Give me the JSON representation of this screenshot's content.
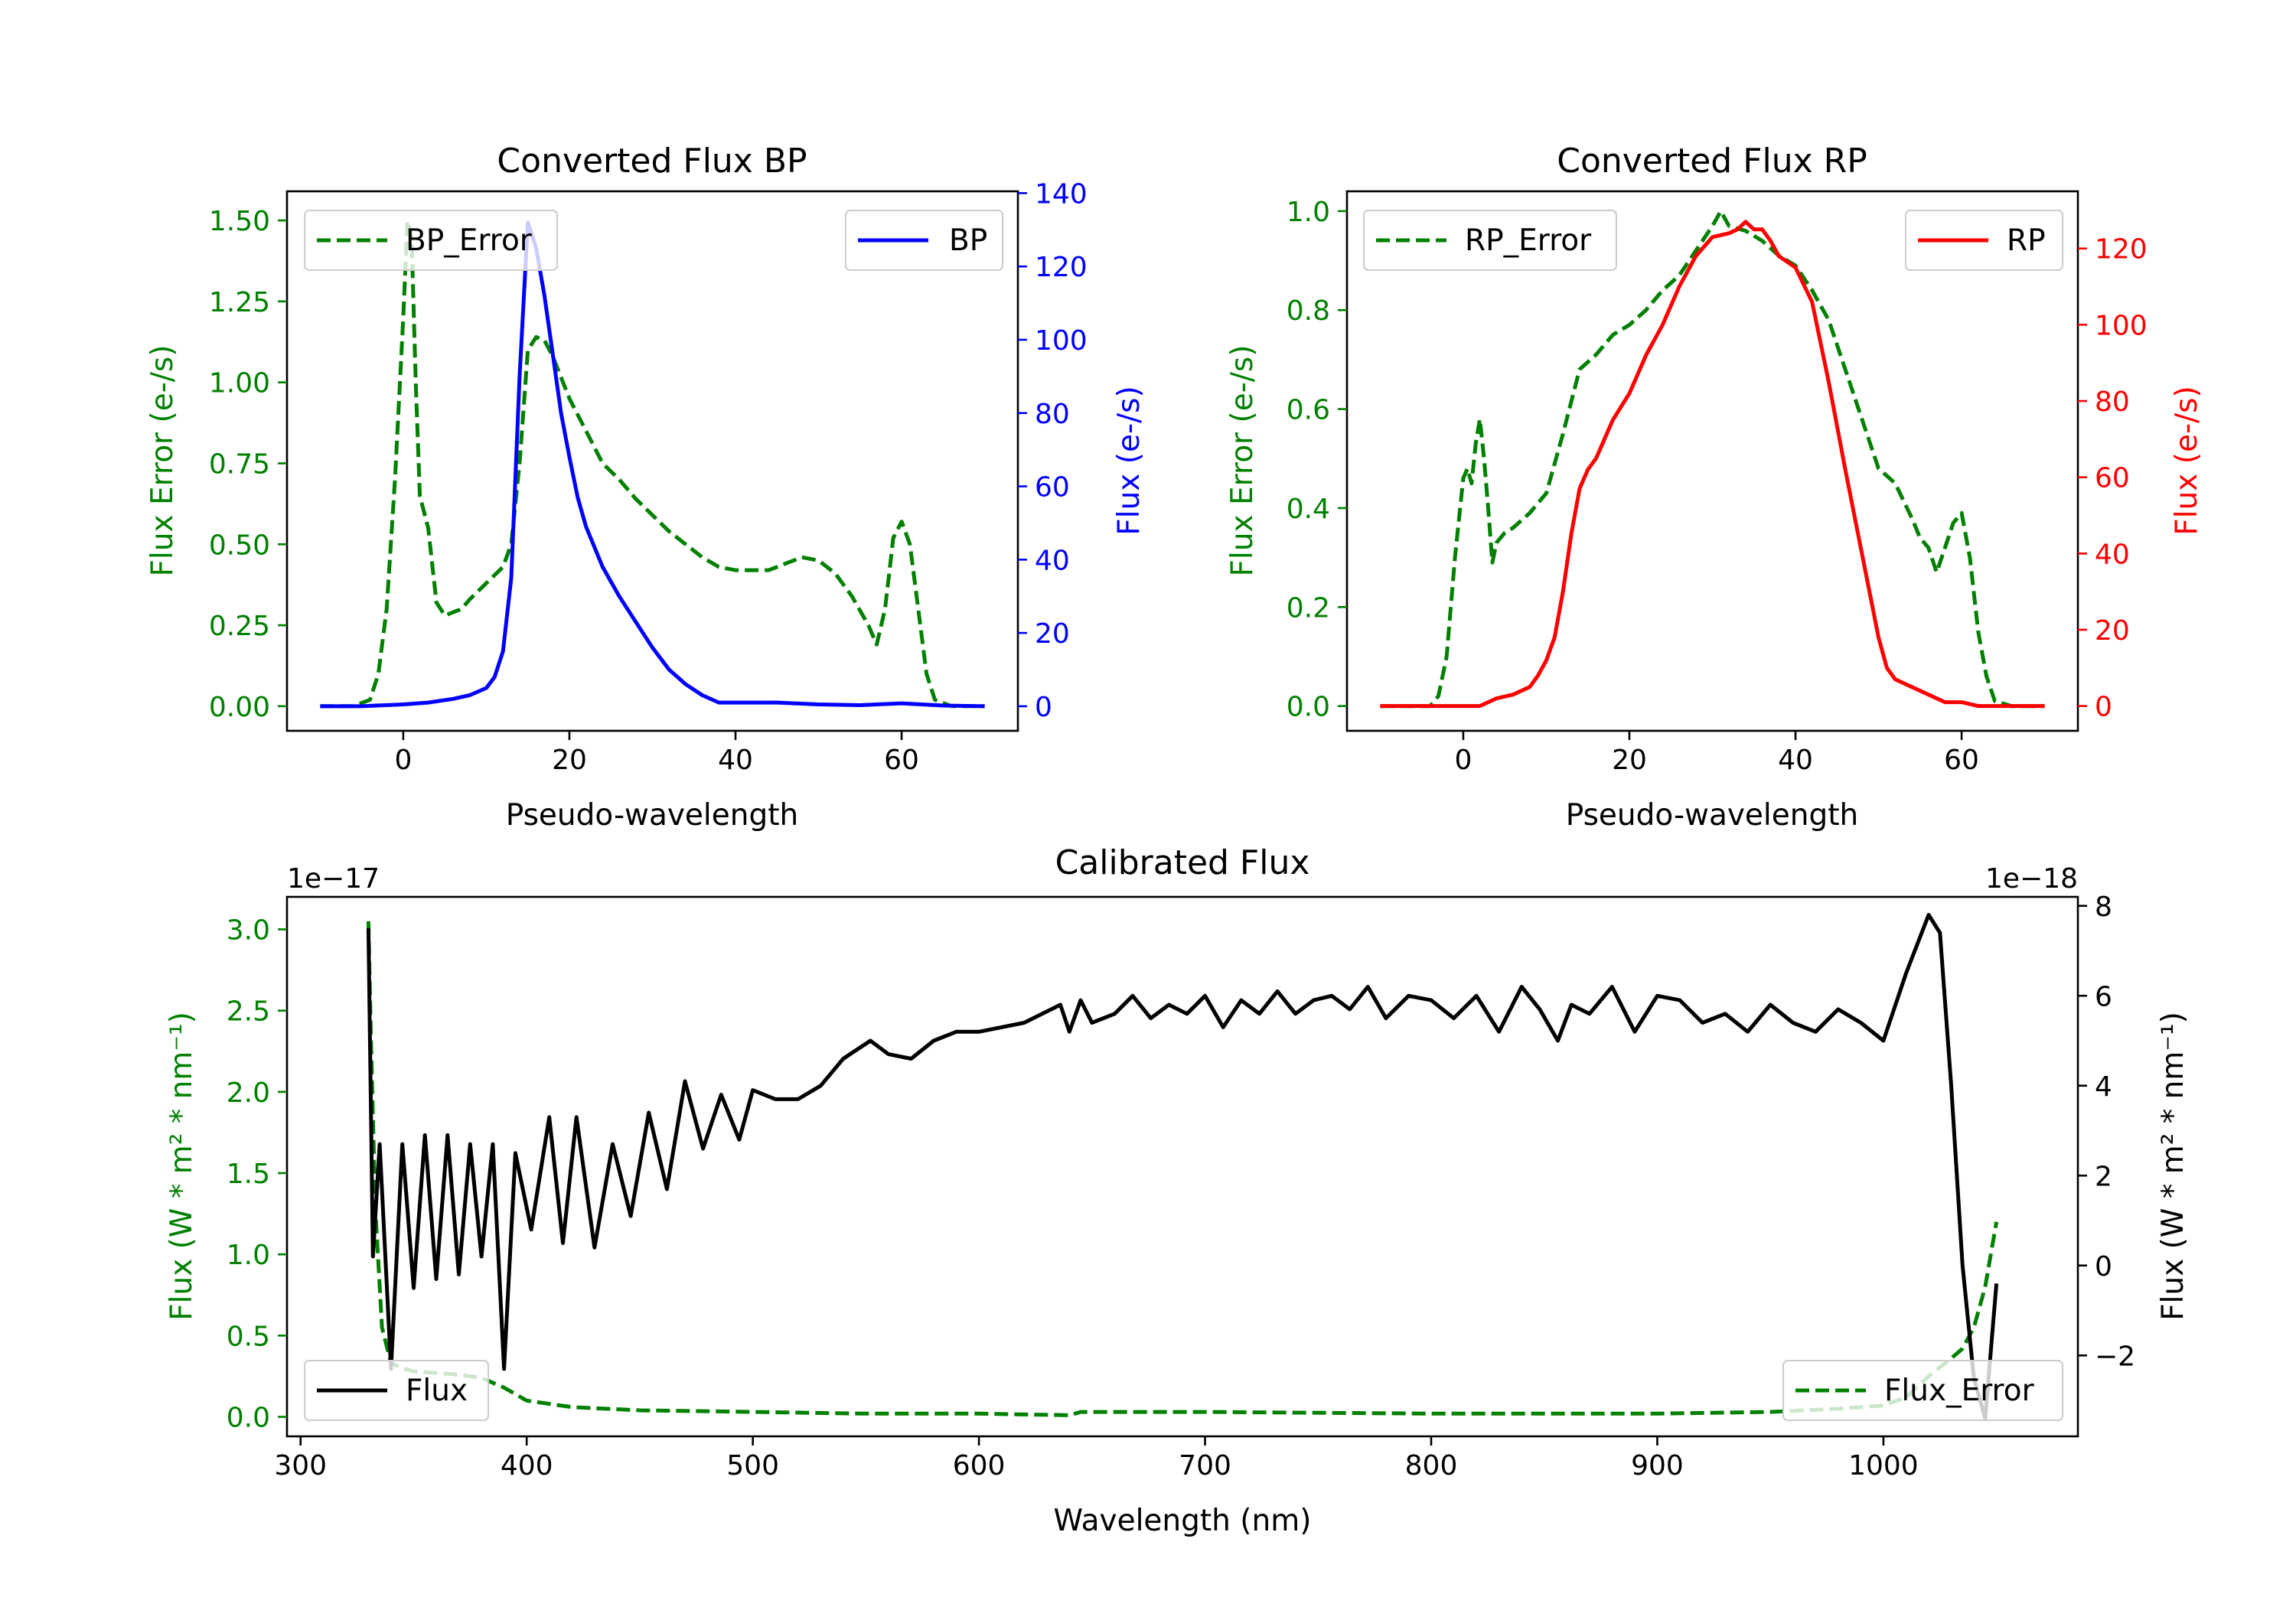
{
  "chart_data": [
    {
      "id": "bp",
      "type": "line",
      "title": "Converted Flux BP",
      "xlabel": "Pseudo-wavelength",
      "xlim": [
        -14,
        74
      ],
      "xticks": [
        0,
        20,
        40,
        60
      ],
      "left_axis": {
        "label": "Flux Error (e-/s)",
        "color": "#008000",
        "lim": [
          -0.076,
          1.59
        ],
        "ticks": [
          0.0,
          0.25,
          0.5,
          0.75,
          1.0,
          1.25,
          1.5
        ],
        "tick_labels": [
          "0.00",
          "0.25",
          "0.50",
          "0.75",
          "1.00",
          "1.25",
          "1.50"
        ]
      },
      "right_axis": {
        "label": "Flux (e-/s)",
        "color": "#0000ff",
        "lim": [
          -6.7,
          140.5
        ],
        "ticks": [
          0,
          20,
          40,
          60,
          80,
          100,
          120,
          140
        ],
        "tick_labels": [
          "0",
          "20",
          "40",
          "60",
          "80",
          "100",
          "120",
          "140"
        ]
      },
      "series": [
        {
          "name": "BP_Error",
          "axis": "left",
          "color": "#008000",
          "dash": true,
          "x": [
            -10,
            -6,
            -4,
            -3,
            -2,
            -1,
            0,
            0.5,
            1,
            1.5,
            2,
            3,
            4,
            5,
            6,
            7,
            8,
            10,
            12,
            13,
            14,
            15,
            16,
            17,
            18,
            20,
            22,
            24,
            26,
            28,
            30,
            32,
            34,
            36,
            38,
            40,
            42,
            44,
            46,
            48,
            50,
            52,
            54,
            56,
            57,
            58,
            59,
            60,
            61,
            62,
            63,
            64,
            66,
            68,
            70
          ],
          "values": [
            0.0,
            0.0,
            0.02,
            0.1,
            0.3,
            0.7,
            1.2,
            1.5,
            1.45,
            1.0,
            0.65,
            0.55,
            0.32,
            0.28,
            0.29,
            0.3,
            0.33,
            0.38,
            0.43,
            0.5,
            0.75,
            1.1,
            1.14,
            1.13,
            1.08,
            0.95,
            0.85,
            0.75,
            0.7,
            0.64,
            0.59,
            0.54,
            0.5,
            0.46,
            0.43,
            0.42,
            0.42,
            0.42,
            0.44,
            0.46,
            0.45,
            0.41,
            0.34,
            0.25,
            0.19,
            0.3,
            0.52,
            0.57,
            0.5,
            0.3,
            0.1,
            0.02,
            0.0,
            0.0,
            0.0
          ]
        },
        {
          "name": "BP",
          "axis": "right",
          "color": "#0000ff",
          "dash": false,
          "x": [
            -10,
            -5,
            0,
            3,
            6,
            8,
            10,
            11,
            12,
            13,
            14,
            15,
            16,
            17,
            18,
            19,
            20,
            21,
            22,
            24,
            26,
            28,
            30,
            32,
            34,
            36,
            38,
            40,
            45,
            50,
            55,
            60,
            65,
            70
          ],
          "values": [
            0,
            0,
            0.5,
            1,
            2,
            3,
            5,
            8,
            15,
            35,
            90,
            132,
            125,
            112,
            96,
            80,
            68,
            57,
            49,
            38,
            30,
            23,
            16,
            10,
            6,
            3,
            1,
            1,
            1,
            0.5,
            0.3,
            0.8,
            0.2,
            0
          ]
        }
      ],
      "legends": [
        {
          "labels": [
            "BP_Error"
          ],
          "placement": "top-left"
        },
        {
          "labels": [
            "BP"
          ],
          "placement": "top-right"
        }
      ]
    },
    {
      "id": "rp",
      "type": "line",
      "title": "Converted Flux RP",
      "xlabel": "Pseudo-wavelength",
      "xlim": [
        -14,
        74
      ],
      "xticks": [
        0,
        20,
        40,
        60
      ],
      "left_axis": {
        "label": "Flux Error (e-/s)",
        "color": "#008000",
        "lim": [
          -0.05,
          1.04
        ],
        "ticks": [
          0.0,
          0.2,
          0.4,
          0.6,
          0.8,
          1.0
        ],
        "tick_labels": [
          "0.0",
          "0.2",
          "0.4",
          "0.6",
          "0.8",
          "1.0"
        ]
      },
      "right_axis": {
        "label": "Flux (e-/s)",
        "color": "#ff0000",
        "lim": [
          -6.5,
          135
        ],
        "ticks": [
          0,
          20,
          40,
          60,
          80,
          100,
          120
        ],
        "tick_labels": [
          "0",
          "20",
          "40",
          "60",
          "80",
          "100",
          "120"
        ]
      },
      "series": [
        {
          "name": "RP_Error",
          "axis": "left",
          "color": "#008000",
          "dash": true,
          "x": [
            -10,
            -4,
            -3,
            -2,
            -1,
            0,
            0.5,
            1,
            1.5,
            2,
            2.5,
            3,
            3.5,
            4,
            5,
            6,
            8,
            10,
            12,
            14,
            16,
            18,
            20,
            22,
            24,
            26,
            28,
            30,
            31,
            32,
            34,
            36,
            38,
            40,
            42,
            44,
            46,
            48,
            50,
            52,
            54,
            55,
            56,
            57,
            58,
            59,
            60,
            61,
            62,
            63,
            64,
            66,
            70
          ],
          "values": [
            0.0,
            0.0,
            0.02,
            0.1,
            0.3,
            0.46,
            0.48,
            0.45,
            0.53,
            0.58,
            0.5,
            0.4,
            0.29,
            0.33,
            0.35,
            0.36,
            0.39,
            0.43,
            0.55,
            0.68,
            0.71,
            0.75,
            0.77,
            0.8,
            0.84,
            0.87,
            0.92,
            0.97,
            1.0,
            0.97,
            0.96,
            0.94,
            0.91,
            0.89,
            0.84,
            0.78,
            0.68,
            0.58,
            0.48,
            0.45,
            0.38,
            0.34,
            0.32,
            0.27,
            0.32,
            0.37,
            0.39,
            0.3,
            0.15,
            0.06,
            0.01,
            0.0,
            0.0
          ]
        },
        {
          "name": "RP",
          "axis": "right",
          "color": "#ff0000",
          "dash": false,
          "x": [
            -10,
            -5,
            0,
            2,
            4,
            6,
            8,
            9,
            10,
            11,
            12,
            13,
            14,
            15,
            16,
            18,
            20,
            22,
            24,
            26,
            28,
            30,
            32,
            33,
            34,
            35,
            36,
            37,
            38,
            40,
            42,
            44,
            46,
            48,
            50,
            51,
            52,
            54,
            56,
            58,
            60,
            62,
            64,
            66,
            70
          ],
          "values": [
            0,
            0,
            0,
            0,
            2,
            3,
            5,
            8,
            12,
            18,
            30,
            45,
            57,
            62,
            65,
            75,
            82,
            92,
            100,
            110,
            118,
            123,
            124,
            125,
            127,
            125,
            125,
            122,
            118,
            115,
            106,
            85,
            62,
            40,
            18,
            10,
            7,
            5,
            3,
            1,
            1,
            0,
            0,
            0,
            0
          ]
        }
      ],
      "legends": [
        {
          "labels": [
            "RP_Error"
          ],
          "placement": "top-left"
        },
        {
          "labels": [
            "RP"
          ],
          "placement": "top-right"
        }
      ]
    },
    {
      "id": "cal",
      "type": "line",
      "title": "Calibrated Flux",
      "xlabel": "Wavelength (nm)",
      "xlim": [
        294,
        1086
      ],
      "xticks": [
        300,
        400,
        500,
        600,
        700,
        800,
        900,
        1000
      ],
      "left_axis": {
        "label": "Flux (W * m² * nm⁻¹)",
        "color": "#008000",
        "offset_text": "1e−17",
        "lim": [
          -0.12,
          3.2
        ],
        "ticks": [
          0.0,
          0.5,
          1.0,
          1.5,
          2.0,
          2.5,
          3.0
        ],
        "tick_labels": [
          "0.0",
          "0.5",
          "1.0",
          "1.5",
          "2.0",
          "2.5",
          "3.0"
        ]
      },
      "right_axis": {
        "label": "Flux (W * m² * nm⁻¹)",
        "color": "#000000",
        "offset_text": "1e−18",
        "lim": [
          -3.8,
          8.2
        ],
        "ticks": [
          -2,
          0,
          2,
          4,
          6,
          8
        ],
        "tick_labels": [
          "−2",
          "0",
          "2",
          "4",
          "6",
          "8"
        ]
      },
      "series": [
        {
          "name": "Flux_Error",
          "axis": "left",
          "color": "#008000",
          "dash": true,
          "x": [
            330,
            331,
            333,
            336,
            340,
            345,
            350,
            360,
            370,
            380,
            390,
            400,
            420,
            450,
            500,
            550,
            600,
            640,
            645,
            700,
            800,
            900,
            950,
            980,
            1000,
            1010,
            1020,
            1030,
            1035,
            1040,
            1045,
            1050
          ],
          "values": [
            3.05,
            2.4,
            1.3,
            0.55,
            0.33,
            0.3,
            0.28,
            0.27,
            0.26,
            0.24,
            0.18,
            0.1,
            0.06,
            0.04,
            0.03,
            0.02,
            0.02,
            0.01,
            0.03,
            0.03,
            0.02,
            0.02,
            0.03,
            0.05,
            0.07,
            0.12,
            0.25,
            0.36,
            0.42,
            0.55,
            0.8,
            1.2
          ]
        },
        {
          "name": "Flux",
          "axis": "right",
          "color": "#000000",
          "dash": false,
          "x": [
            330,
            332,
            335,
            340,
            345,
            350,
            355,
            360,
            365,
            370,
            375,
            380,
            385,
            390,
            395,
            402,
            410,
            416,
            422,
            430,
            438,
            446,
            454,
            462,
            470,
            478,
            486,
            494,
            500,
            510,
            520,
            530,
            540,
            552,
            560,
            570,
            580,
            590,
            600,
            620,
            636,
            640,
            645,
            650,
            660,
            668,
            676,
            684,
            692,
            700,
            708,
            716,
            724,
            732,
            740,
            748,
            756,
            764,
            772,
            780,
            790,
            800,
            810,
            820,
            830,
            840,
            848,
            856,
            862,
            870,
            880,
            890,
            900,
            910,
            920,
            930,
            940,
            950,
            960,
            970,
            980,
            990,
            1000,
            1010,
            1020,
            1025,
            1030,
            1035,
            1040,
            1045,
            1050
          ],
          "values": [
            7.5,
            0.2,
            2.7,
            -2.3,
            2.7,
            -0.5,
            2.9,
            -0.3,
            2.9,
            -0.2,
            2.7,
            0.2,
            2.7,
            -2.3,
            2.5,
            0.8,
            3.3,
            0.5,
            3.3,
            0.4,
            2.7,
            1.1,
            3.4,
            1.7,
            4.1,
            2.6,
            3.8,
            2.8,
            3.9,
            3.7,
            3.7,
            4.0,
            4.6,
            5.0,
            4.7,
            4.6,
            5.0,
            5.2,
            5.2,
            5.4,
            5.8,
            5.2,
            5.9,
            5.4,
            5.6,
            6.0,
            5.5,
            5.8,
            5.6,
            6.0,
            5.3,
            5.9,
            5.6,
            6.1,
            5.6,
            5.9,
            6.0,
            5.7,
            6.2,
            5.5,
            6.0,
            5.9,
            5.5,
            6.0,
            5.2,
            6.2,
            5.7,
            5.0,
            5.8,
            5.6,
            6.2,
            5.2,
            6.0,
            5.9,
            5.4,
            5.6,
            5.2,
            5.8,
            5.4,
            5.2,
            5.7,
            5.4,
            5.0,
            6.5,
            7.8,
            7.4,
            4.0,
            0.0,
            -2.5,
            -3.4,
            -0.4
          ]
        }
      ],
      "legends": [
        {
          "labels": [
            "Flux"
          ],
          "placement": "bottom-left"
        },
        {
          "labels": [
            "Flux_Error"
          ],
          "placement": "bottom-right"
        }
      ]
    }
  ]
}
